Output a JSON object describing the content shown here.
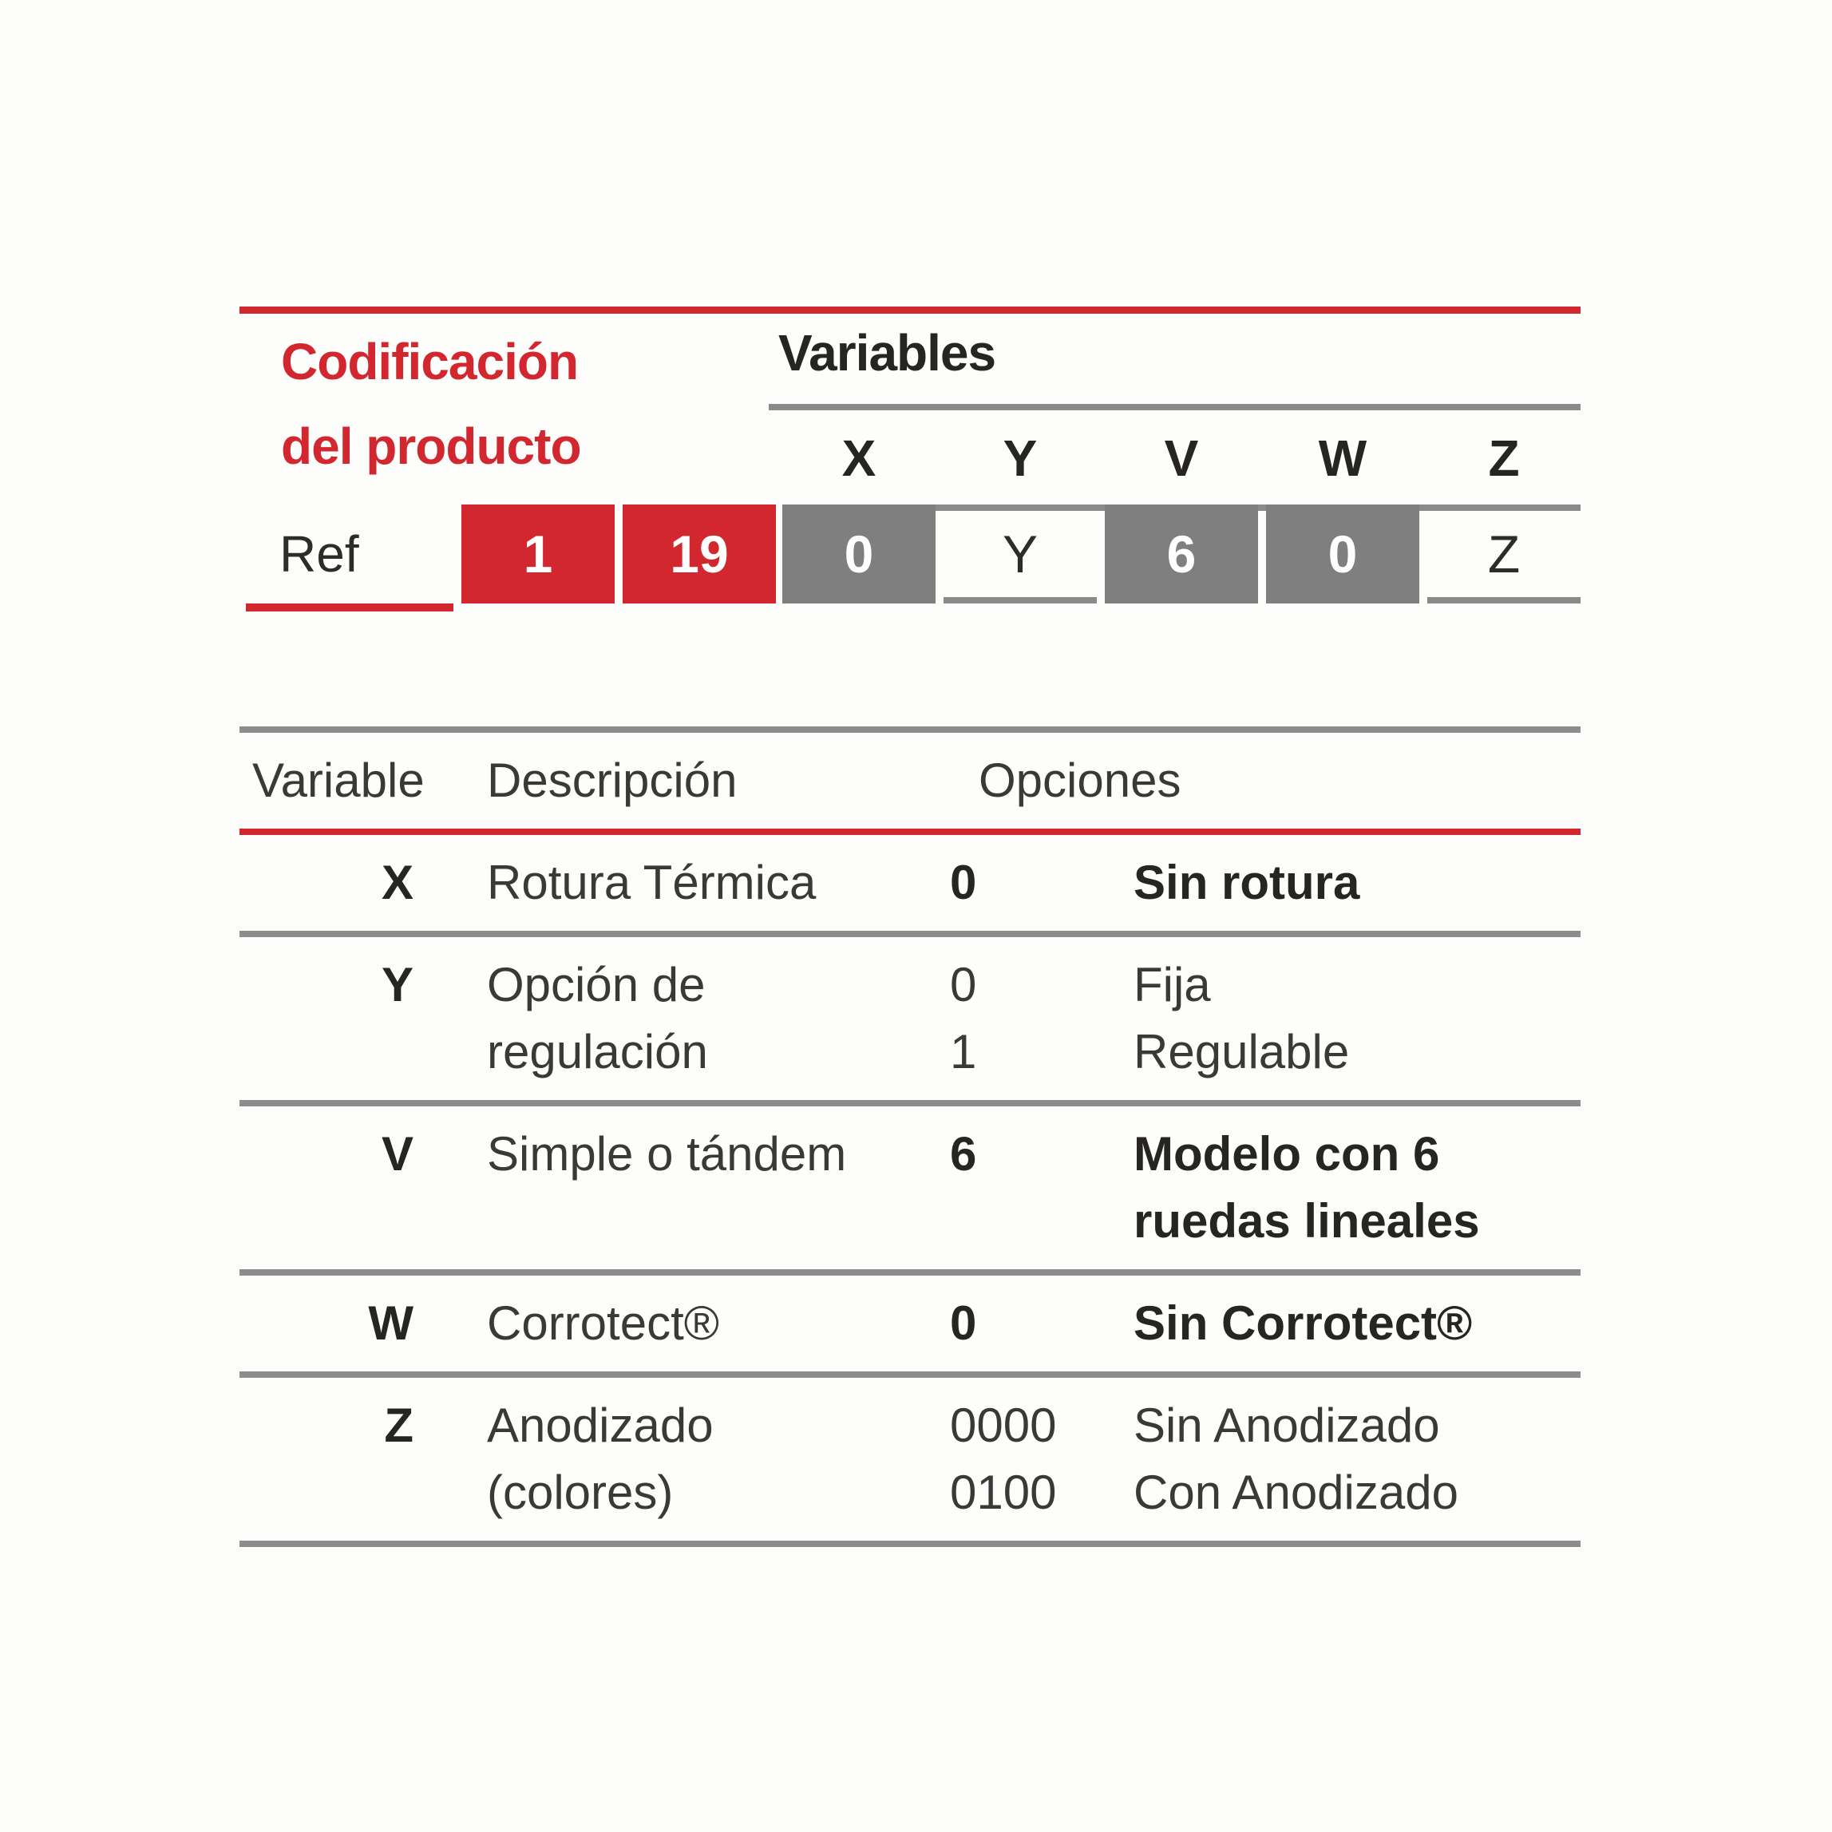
{
  "colors": {
    "accent_red": "#d2272e",
    "cell_gray": "#7f7f7f",
    "rule_gray": "#8a8a8a",
    "off_white_cell": "#fcfcf9",
    "text_bold": "#272524",
    "text_regular": "#3b3938"
  },
  "coding": {
    "title": "Codificación\ndel producto",
    "variables_heading": "Variables",
    "ref_label": "Ref",
    "ref_cells": [
      {
        "text": "1"
      },
      {
        "text": "19"
      }
    ],
    "columns": [
      {
        "letter": "X",
        "cell": "0",
        "style": "gray"
      },
      {
        "letter": "Y",
        "cell": "Y",
        "style": "white"
      },
      {
        "letter": "V",
        "cell": "6",
        "style": "gray"
      },
      {
        "letter": "W",
        "cell": "0",
        "style": "gray"
      },
      {
        "letter": "Z",
        "cell": "Z",
        "style": "white"
      }
    ]
  },
  "options_table": {
    "headers": {
      "variable": "Variable",
      "description": "Descripción",
      "options": "Opciones"
    },
    "rows": [
      {
        "variable": "X",
        "description": "Rotura Térmica",
        "codes": "0",
        "labels": "Sin rotura",
        "selected": true
      },
      {
        "variable": "Y",
        "description": "Opción de\nregulación",
        "codes": "0\n1",
        "labels": "Fija\nRegulable",
        "selected": false
      },
      {
        "variable": "V",
        "description": "Simple o tándem",
        "codes": "6",
        "labels": "Modelo con 6\nruedas lineales",
        "selected": true
      },
      {
        "variable": "W",
        "description": "Corrotect®",
        "codes": "0",
        "labels": "Sin Corrotect®",
        "selected": true
      },
      {
        "variable": "Z",
        "description": "Anodizado\n(colores)",
        "codes": "0000\n0100",
        "labels": "Sin Anodizado\nCon Anodizado",
        "selected": false
      }
    ]
  }
}
